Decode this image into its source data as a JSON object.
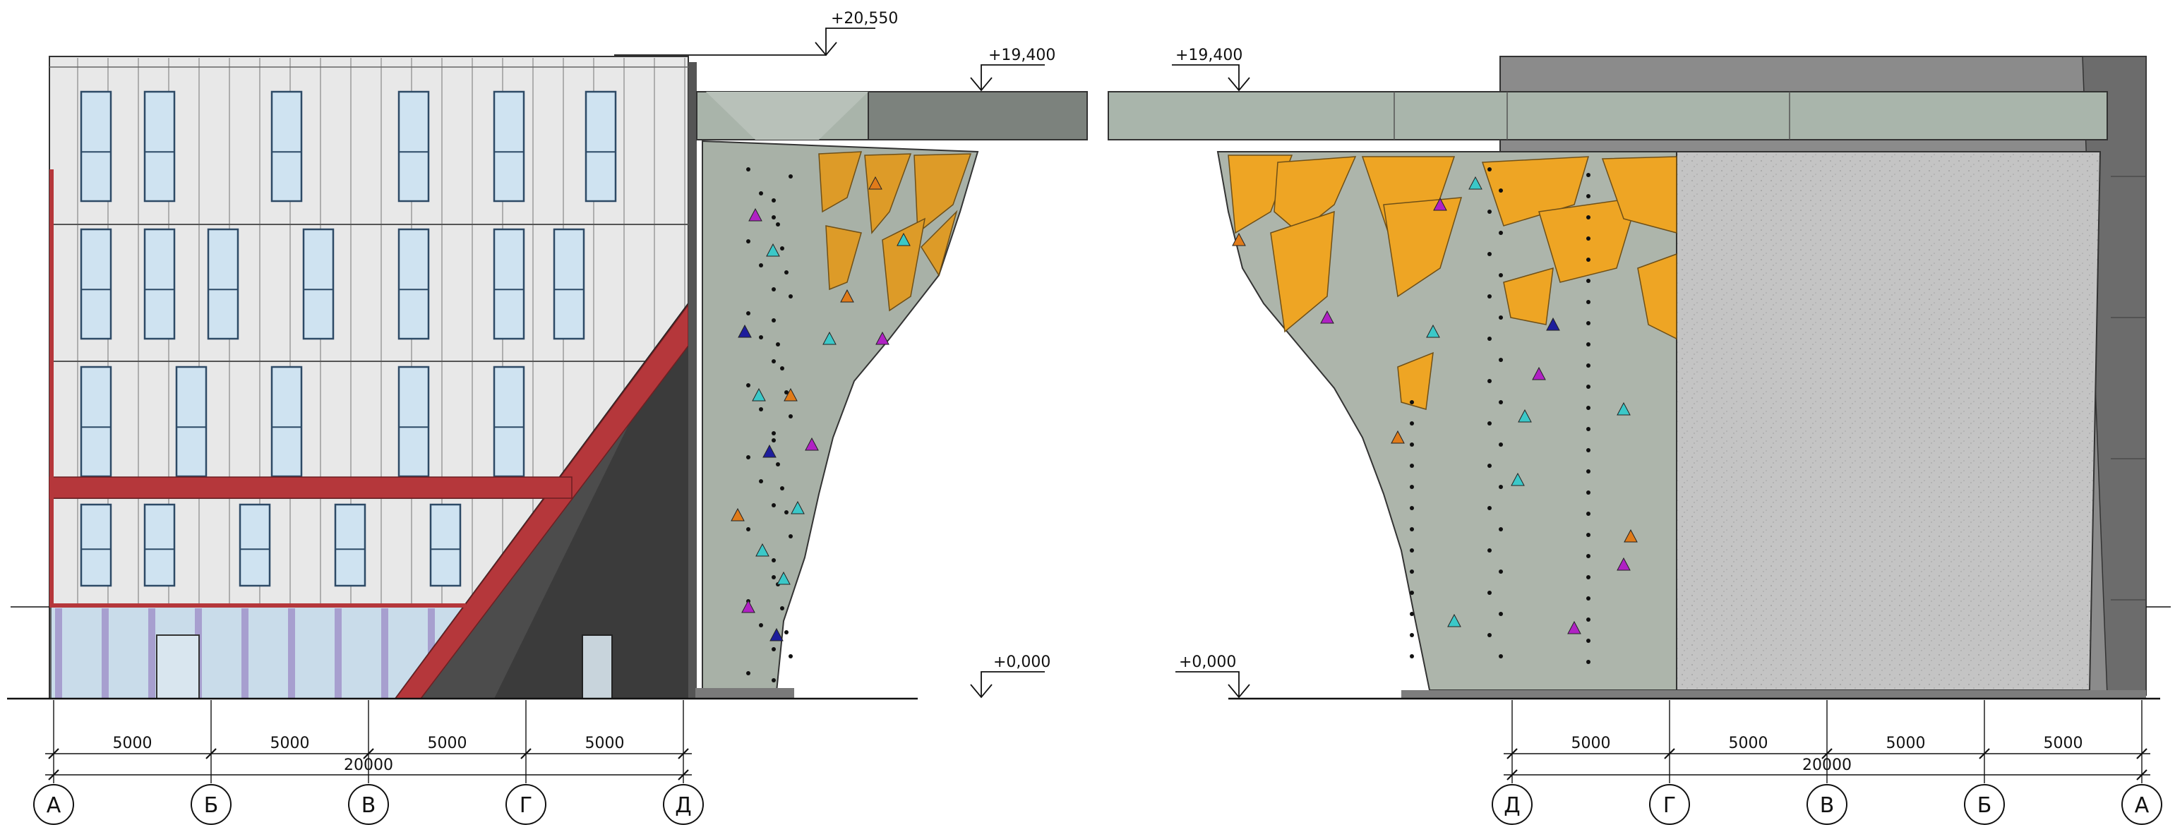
{
  "elevation_marks": {
    "top_left": "+20,550",
    "mid_left": "+19,400",
    "zero_left": "+0,000",
    "mid_right": "+19,400",
    "zero_right": "+0,000"
  },
  "left_view": {
    "spans": [
      "5000",
      "5000",
      "5000",
      "5000"
    ],
    "total": "20000",
    "axes": [
      "А",
      "Б",
      "В",
      "Г",
      "Д"
    ]
  },
  "right_view": {
    "spans": [
      "5000",
      "5000",
      "5000",
      "5000"
    ],
    "total": "20000",
    "axes": [
      "Д",
      "Г",
      "В",
      "Б",
      "А"
    ]
  },
  "colors": {
    "facade_panel": "#e6e6e6",
    "window_glass": "#cfe3f1",
    "accent_red": "#b5373b",
    "dark_volume": "#4a4a4a",
    "climbing_panel": "#aab3aa",
    "canopy": "#a9b5ab",
    "orange_volume": "#f2a51d",
    "concrete_wall": "#bdbdbd"
  }
}
